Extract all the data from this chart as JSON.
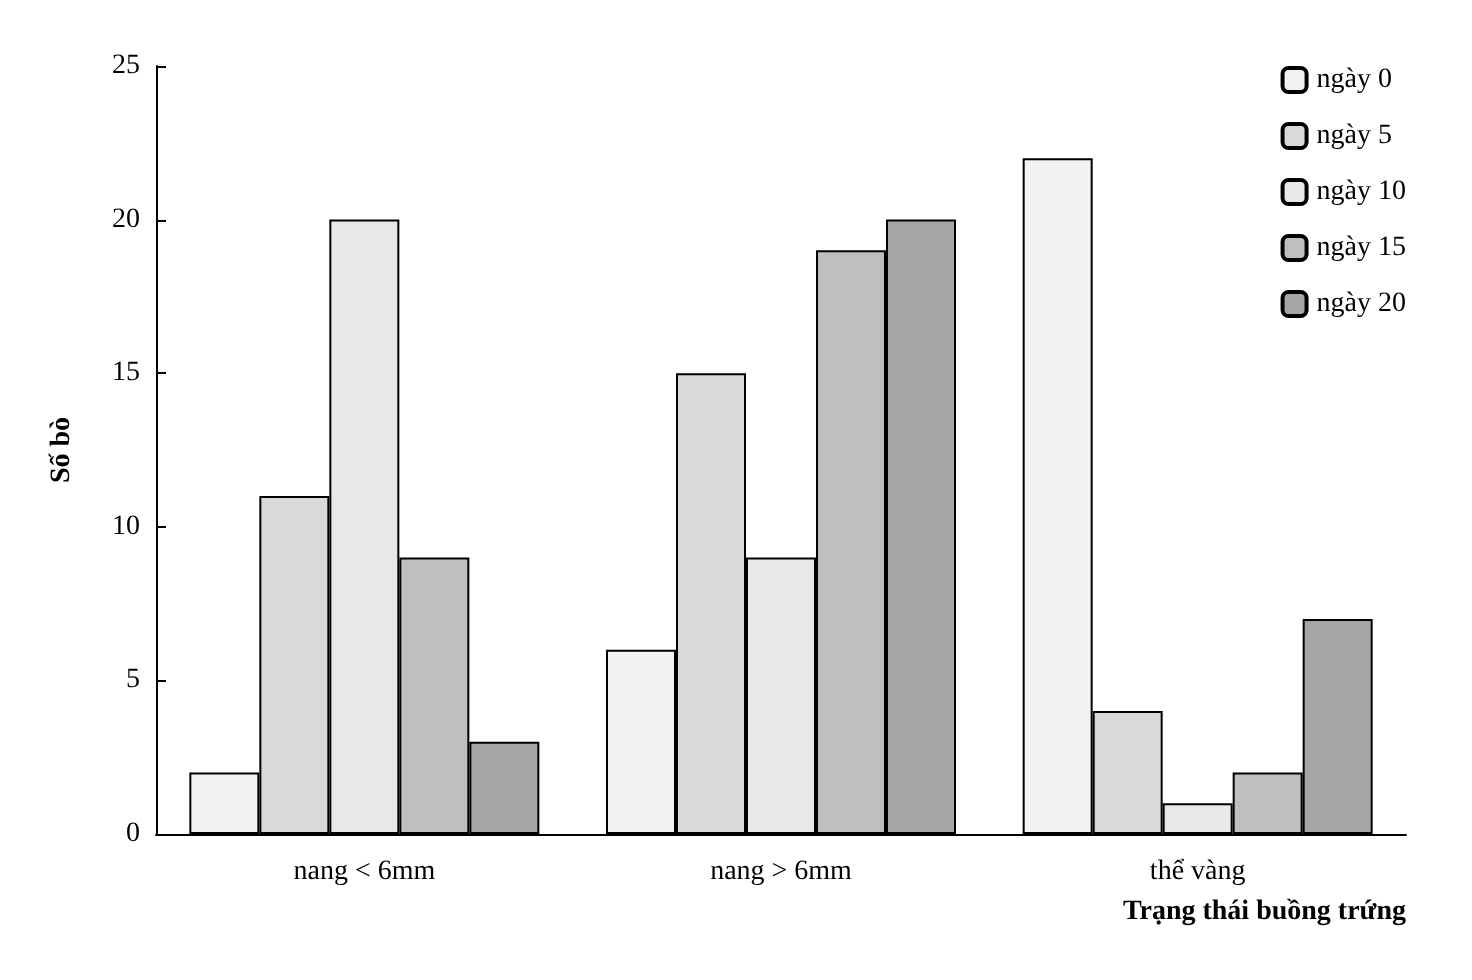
{
  "chart_data": {
    "type": "bar",
    "xlabel": "Trạng thái buồng trứng",
    "ylabel": "Số bò",
    "categories": [
      "nang < 6mm",
      "nang > 6mm",
      "thể vàng"
    ],
    "series": [
      {
        "name": "ngày 0",
        "color": "#f2f2f2",
        "values": [
          2,
          6,
          22
        ]
      },
      {
        "name": "ngày 5",
        "color": "#d9d9d9",
        "values": [
          11,
          15,
          4
        ]
      },
      {
        "name": "ngày 10",
        "color": "#e8e8e8",
        "values": [
          20,
          9,
          1
        ]
      },
      {
        "name": "ngày 15",
        "color": "#bfbfbf",
        "values": [
          9,
          19,
          2
        ]
      },
      {
        "name": "ngày 20",
        "color": "#a6a6a6",
        "values": [
          3,
          20,
          7
        ]
      }
    ],
    "ylim": [
      0,
      25
    ],
    "yticks": [
      0,
      5,
      10,
      15,
      20,
      25
    ],
    "grid": false,
    "legend": "top right"
  }
}
